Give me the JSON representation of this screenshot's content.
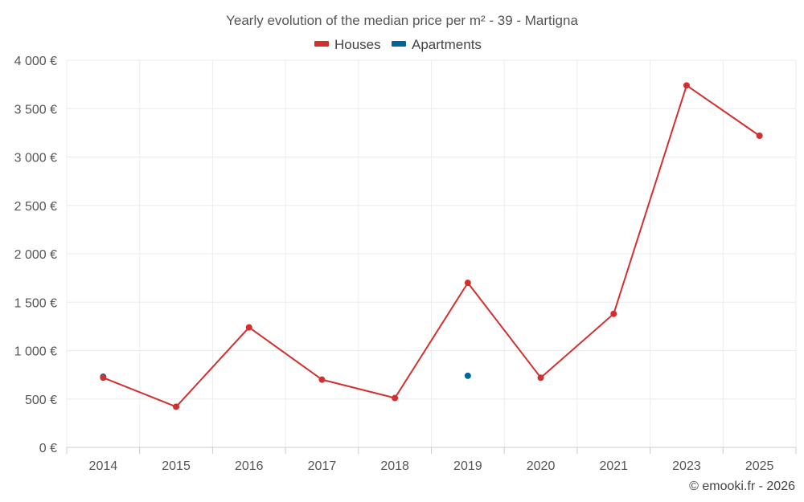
{
  "chart_data": {
    "type": "line",
    "title": "Yearly evolution of the median price per m² - 39 - Martigna",
    "categories": [
      "2014",
      "2015",
      "2016",
      "2017",
      "2018",
      "2019",
      "2020",
      "2021",
      "2023",
      "2025"
    ],
    "ylim": [
      0,
      4000
    ],
    "y_ticks": [
      0,
      500,
      1000,
      1500,
      2000,
      2500,
      3000,
      3500,
      4000
    ],
    "y_tick_labels": [
      "0 €",
      "500 €",
      "1 000 €",
      "1 500 €",
      "2 000 €",
      "2 500 €",
      "3 000 €",
      "3 500 €",
      "4 000 €"
    ],
    "grid": true,
    "legend_position": "top-center",
    "series": [
      {
        "name": "Houses",
        "color": "#d32f2f",
        "values": [
          720,
          420,
          1240,
          700,
          510,
          1700,
          720,
          1380,
          3740,
          3220
        ]
      },
      {
        "name": "Apartments",
        "color": "#01669b",
        "values": [
          730,
          null,
          null,
          null,
          null,
          740,
          null,
          null,
          null,
          null
        ]
      }
    ]
  },
  "credit": "© emooki.fr - 2026"
}
